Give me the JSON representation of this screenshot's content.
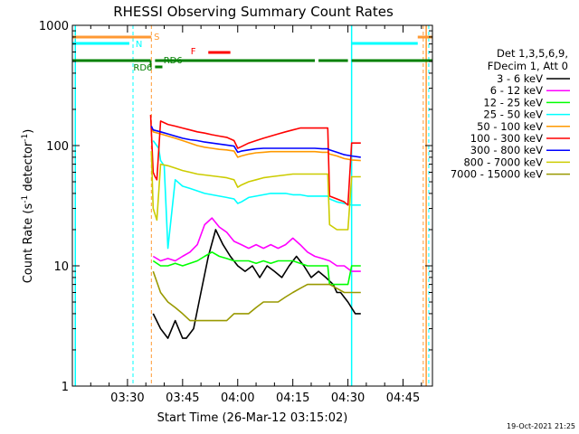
{
  "chart_data": {
    "type": "line",
    "title": "RHESSI Observing Summary Count Rates",
    "xlabel": "Start Time (26-Mar-12 03:15:02)",
    "ylabel_main": "Count Rate (s",
    "ylabel_sup1": "-1",
    "ylabel_mid": " detector",
    "ylabel_sup2": "-1",
    "ylabel_end": ")",
    "xlim": [
      0,
      98
    ],
    "ylim": [
      1,
      1000
    ],
    "yscale": "log",
    "xticks": [
      {
        "label": "03:30",
        "value": 15
      },
      {
        "label": "03:45",
        "value": 30
      },
      {
        "label": "04:00",
        "value": 45
      },
      {
        "label": "04:15",
        "value": 60
      },
      {
        "label": "04:30",
        "value": 75
      },
      {
        "label": "04:45",
        "value": 90
      }
    ],
    "yticks": [
      {
        "label": "1",
        "value": 1
      },
      {
        "label": "10",
        "value": 10
      },
      {
        "label": "100",
        "value": 100
      },
      {
        "label": "1000",
        "value": 1000
      }
    ],
    "legend_header": [
      "Det 1,3,5,6,9,",
      "FDecim 1, Att 0"
    ],
    "series": [
      {
        "name": "3 - 6 keV",
        "color": "#000000",
        "points": [
          [
            22,
            4
          ],
          [
            24,
            3
          ],
          [
            26,
            2.5
          ],
          [
            28,
            3.5
          ],
          [
            30,
            2.5
          ],
          [
            31,
            2.5
          ],
          [
            33,
            3
          ],
          [
            35,
            6
          ],
          [
            37,
            12
          ],
          [
            39,
            20
          ],
          [
            41,
            15
          ],
          [
            43,
            12
          ],
          [
            45,
            10
          ],
          [
            47,
            9
          ],
          [
            49,
            10
          ],
          [
            51,
            8
          ],
          [
            53,
            10
          ],
          [
            55,
            9
          ],
          [
            57,
            8
          ],
          [
            59,
            10
          ],
          [
            61,
            12
          ],
          [
            63,
            10
          ],
          [
            65,
            8
          ],
          [
            67,
            9
          ],
          [
            69,
            8
          ],
          [
            71,
            7
          ],
          [
            72,
            6
          ],
          [
            73,
            6
          ],
          [
            75,
            5
          ],
          [
            77,
            4
          ],
          [
            78.5,
            4
          ]
        ]
      },
      {
        "name": "6 - 12 keV",
        "color": "#ff00ff",
        "points": [
          [
            22,
            12
          ],
          [
            24,
            11
          ],
          [
            26,
            11.5
          ],
          [
            28,
            11
          ],
          [
            30,
            12
          ],
          [
            32,
            13
          ],
          [
            34,
            15
          ],
          [
            36,
            22
          ],
          [
            38,
            25
          ],
          [
            40,
            21
          ],
          [
            42,
            19
          ],
          [
            44,
            16
          ],
          [
            46,
            15
          ],
          [
            48,
            14
          ],
          [
            50,
            15
          ],
          [
            52,
            14
          ],
          [
            54,
            15
          ],
          [
            56,
            14
          ],
          [
            58,
            15
          ],
          [
            60,
            17
          ],
          [
            62,
            15
          ],
          [
            64,
            13
          ],
          [
            66,
            12
          ],
          [
            68,
            11.5
          ],
          [
            70,
            11
          ],
          [
            72,
            10
          ],
          [
            74,
            10
          ],
          [
            76,
            9
          ],
          [
            78.5,
            9
          ]
        ]
      },
      {
        "name": "12 - 25 keV",
        "color": "#00ff00",
        "points": [
          [
            22,
            11
          ],
          [
            24,
            10
          ],
          [
            26,
            10
          ],
          [
            28,
            10.5
          ],
          [
            30,
            10
          ],
          [
            32,
            10.5
          ],
          [
            34,
            11
          ],
          [
            36,
            12
          ],
          [
            38,
            13
          ],
          [
            40,
            12
          ],
          [
            42,
            11.5
          ],
          [
            44,
            11
          ],
          [
            46,
            11
          ],
          [
            48,
            11
          ],
          [
            50,
            10.5
          ],
          [
            52,
            11
          ],
          [
            54,
            10.5
          ],
          [
            56,
            11
          ],
          [
            58,
            11
          ],
          [
            60,
            11
          ],
          [
            62,
            10.5
          ],
          [
            64,
            10
          ],
          [
            66,
            10
          ],
          [
            68,
            10
          ],
          [
            69.5,
            10
          ],
          [
            70,
            7
          ],
          [
            72,
            7
          ],
          [
            74,
            7
          ],
          [
            75,
            7
          ],
          [
            76,
            10
          ],
          [
            78.5,
            10
          ]
        ]
      },
      {
        "name": "25 - 50 keV",
        "color": "#00ffff",
        "points": [
          [
            22,
            110
          ],
          [
            23.5,
            95
          ],
          [
            24,
            75
          ],
          [
            25,
            68
          ],
          [
            26,
            14
          ],
          [
            28,
            52
          ],
          [
            30,
            46
          ],
          [
            32,
            44
          ],
          [
            34,
            42
          ],
          [
            36,
            40
          ],
          [
            38,
            39
          ],
          [
            40,
            38
          ],
          [
            42,
            37
          ],
          [
            44,
            36
          ],
          [
            45,
            33
          ],
          [
            46,
            34
          ],
          [
            48,
            37
          ],
          [
            50,
            38
          ],
          [
            52,
            39
          ],
          [
            54,
            40
          ],
          [
            56,
            40
          ],
          [
            58,
            40
          ],
          [
            60,
            39
          ],
          [
            62,
            39
          ],
          [
            64,
            38
          ],
          [
            66,
            38
          ],
          [
            68,
            38
          ],
          [
            69.5,
            38
          ],
          [
            70,
            36
          ],
          [
            72,
            34
          ],
          [
            74,
            33
          ],
          [
            76,
            32
          ],
          [
            78.5,
            32
          ]
        ]
      },
      {
        "name": "50 - 100 keV",
        "color": "#ff9900",
        "points": [
          [
            21.5,
            140
          ],
          [
            22,
            130
          ],
          [
            24,
            125
          ],
          [
            26,
            120
          ],
          [
            28,
            115
          ],
          [
            30,
            110
          ],
          [
            32,
            105
          ],
          [
            34,
            100
          ],
          [
            36,
            97
          ],
          [
            38,
            95
          ],
          [
            40,
            93
          ],
          [
            42,
            92
          ],
          [
            44,
            90
          ],
          [
            45,
            80
          ],
          [
            46,
            82
          ],
          [
            48,
            85
          ],
          [
            50,
            87
          ],
          [
            52,
            88
          ],
          [
            54,
            89
          ],
          [
            56,
            89
          ],
          [
            58,
            89
          ],
          [
            60,
            89
          ],
          [
            62,
            89
          ],
          [
            64,
            89
          ],
          [
            66,
            89
          ],
          [
            68,
            88
          ],
          [
            69.5,
            88
          ],
          [
            70,
            85
          ],
          [
            72,
            82
          ],
          [
            74,
            78
          ],
          [
            76,
            76
          ],
          [
            78.5,
            75
          ]
        ]
      },
      {
        "name": "100 - 300 keV",
        "color": "#ff0000",
        "points": [
          [
            21.3,
            180
          ],
          [
            22,
            60
          ],
          [
            22.5,
            55
          ],
          [
            23,
            52
          ],
          [
            24,
            160
          ],
          [
            26,
            150
          ],
          [
            28,
            145
          ],
          [
            30,
            140
          ],
          [
            32,
            135
          ],
          [
            34,
            130
          ],
          [
            36,
            127
          ],
          [
            38,
            123
          ],
          [
            40,
            120
          ],
          [
            42,
            117
          ],
          [
            44,
            110
          ],
          [
            45,
            95
          ],
          [
            46,
            98
          ],
          [
            48,
            105
          ],
          [
            50,
            110
          ],
          [
            52,
            115
          ],
          [
            54,
            120
          ],
          [
            56,
            125
          ],
          [
            58,
            130
          ],
          [
            60,
            135
          ],
          [
            62,
            140
          ],
          [
            64,
            140
          ],
          [
            66,
            140
          ],
          [
            68,
            140
          ],
          [
            69.5,
            140
          ],
          [
            70,
            38
          ],
          [
            72,
            36
          ],
          [
            74,
            34
          ],
          [
            75,
            32
          ],
          [
            76,
            105
          ],
          [
            78.5,
            105
          ]
        ]
      },
      {
        "name": "300 - 800 keV",
        "color": "#0000ff",
        "points": [
          [
            21.5,
            145
          ],
          [
            22,
            135
          ],
          [
            24,
            130
          ],
          [
            26,
            125
          ],
          [
            28,
            120
          ],
          [
            30,
            115
          ],
          [
            32,
            112
          ],
          [
            34,
            110
          ],
          [
            36,
            107
          ],
          [
            38,
            105
          ],
          [
            40,
            103
          ],
          [
            42,
            101
          ],
          [
            44,
            99
          ],
          [
            45,
            88
          ],
          [
            46,
            90
          ],
          [
            48,
            92
          ],
          [
            50,
            94
          ],
          [
            52,
            95
          ],
          [
            54,
            95
          ],
          [
            56,
            95
          ],
          [
            58,
            95
          ],
          [
            60,
            95
          ],
          [
            62,
            95
          ],
          [
            64,
            95
          ],
          [
            66,
            95
          ],
          [
            68,
            94
          ],
          [
            69.5,
            94
          ],
          [
            70,
            92
          ],
          [
            72,
            88
          ],
          [
            74,
            84
          ],
          [
            76,
            82
          ],
          [
            78.5,
            80
          ]
        ]
      },
      {
        "name": "800 - 7000 keV",
        "color": "#cccc00",
        "points": [
          [
            21.5,
            90
          ],
          [
            22,
            30
          ],
          [
            23,
            24
          ],
          [
            24,
            70
          ],
          [
            26,
            68
          ],
          [
            28,
            65
          ],
          [
            30,
            62
          ],
          [
            32,
            60
          ],
          [
            34,
            58
          ],
          [
            36,
            57
          ],
          [
            38,
            56
          ],
          [
            40,
            55
          ],
          [
            42,
            54
          ],
          [
            44,
            52
          ],
          [
            45,
            45
          ],
          [
            46,
            47
          ],
          [
            48,
            50
          ],
          [
            50,
            52
          ],
          [
            52,
            54
          ],
          [
            54,
            55
          ],
          [
            56,
            56
          ],
          [
            58,
            57
          ],
          [
            60,
            58
          ],
          [
            62,
            58
          ],
          [
            64,
            58
          ],
          [
            66,
            58
          ],
          [
            68,
            58
          ],
          [
            69.5,
            58
          ],
          [
            70,
            22
          ],
          [
            72,
            20
          ],
          [
            74,
            20
          ],
          [
            75,
            20
          ],
          [
            76,
            55
          ],
          [
            78.5,
            55
          ]
        ]
      },
      {
        "name": "7000 - 15000 keV",
        "color": "#999900",
        "points": [
          [
            22,
            9
          ],
          [
            24,
            6
          ],
          [
            26,
            5
          ],
          [
            28,
            4.5
          ],
          [
            30,
            4
          ],
          [
            32,
            3.5
          ],
          [
            34,
            3.5
          ],
          [
            36,
            3.5
          ],
          [
            38,
            3.5
          ],
          [
            40,
            3.5
          ],
          [
            42,
            3.5
          ],
          [
            44,
            4
          ],
          [
            46,
            4
          ],
          [
            48,
            4
          ],
          [
            50,
            4.5
          ],
          [
            52,
            5
          ],
          [
            54,
            5
          ],
          [
            56,
            5
          ],
          [
            58,
            5.5
          ],
          [
            60,
            6
          ],
          [
            62,
            6.5
          ],
          [
            64,
            7
          ],
          [
            66,
            7
          ],
          [
            68,
            7
          ],
          [
            70,
            7
          ],
          [
            72,
            6.5
          ],
          [
            74,
            6
          ],
          [
            76,
            6
          ],
          [
            78.5,
            6
          ]
        ]
      }
    ],
    "annotations": {
      "S_label": "S",
      "N_label": "N",
      "F_label": "F",
      "RD6_label": "RD6",
      "RD6_label_2": "RD6",
      "S_bars": [
        [
          0,
          21.5
        ],
        [
          94,
          98
        ]
      ],
      "N_bars": [
        [
          0,
          15.5
        ],
        [
          76,
          94
        ]
      ],
      "F_bars": [
        [
          37,
          43
        ]
      ],
      "RD6_bars": [
        [
          0,
          21.3
        ],
        [
          22.5,
          66
        ],
        [
          67,
          75
        ],
        [
          76,
          98
        ]
      ],
      "N_dashed_x": [
        16.5,
        97
      ],
      "S_dashed_x": [
        21.5,
        95.5
      ],
      "N_solid_x": [
        76
      ],
      "S_solid_x": [
        96.3
      ]
    },
    "timestamp": "19-Oct-2021 21:25"
  }
}
